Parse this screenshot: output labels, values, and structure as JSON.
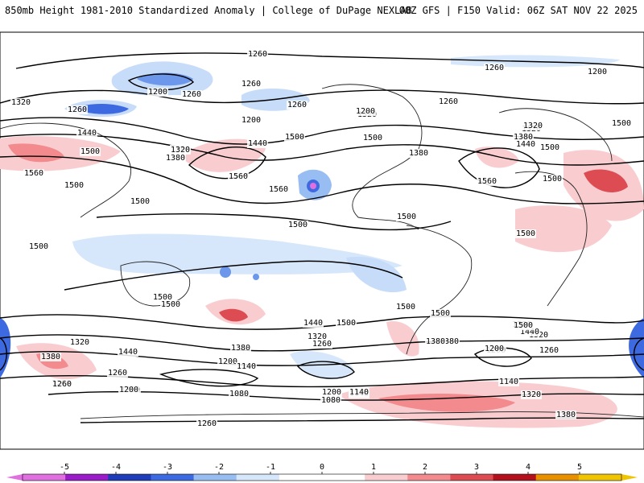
{
  "header": {
    "title": "850mb Height 1981-2010 Standardized Anomaly | College of DuPage NEXLAB",
    "run_info": "00Z GFS | F150 Valid: 06Z SAT NOV 22 2025"
  },
  "colorbar": {
    "ticks": [
      "-5",
      "-4",
      "-3",
      "-2",
      "-1",
      "0",
      "1",
      "2",
      "3",
      "4",
      "5"
    ],
    "colors": [
      "#e070e0",
      "#9a1bc8",
      "#1f3db8",
      "#3d6ae0",
      "#98bdf2",
      "#d6e6fb",
      "#ffffff",
      "#ffffff",
      "#f9cdd0",
      "#f28a8e",
      "#dd4c52",
      "#b3121c",
      "#e89000",
      "#f0c400"
    ]
  },
  "contour_labels": [
    "1260",
    "1260",
    "1200",
    "1260",
    "1200",
    "1320",
    "1260",
    "1260",
    "1200",
    "1260",
    "1320",
    "1200",
    "1260",
    "1320",
    "1380",
    "1440",
    "1500",
    "1560",
    "1560",
    "1500",
    "1320",
    "1380",
    "1440",
    "1500",
    "1500",
    "1560",
    "1560",
    "1500",
    "1380",
    "1440",
    "1320",
    "1560",
    "1500",
    "1500",
    "1500",
    "1500",
    "1500",
    "1500",
    "1500",
    "1500",
    "1440",
    "1500",
    "1320",
    "1260",
    "1380",
    "1200",
    "1140",
    "1080",
    "1200",
    "1380",
    "1440",
    "1320",
    "1260",
    "1260",
    "1200",
    "1140",
    "1080",
    "1140",
    "1200",
    "1260",
    "1320",
    "1380",
    "1380",
    "1440",
    "1500",
    "1320",
    "1500",
    "1500",
    "1500",
    "1500",
    "1260",
    "1200",
    "1260",
    "1140",
    "1380",
    "1200"
  ]
}
